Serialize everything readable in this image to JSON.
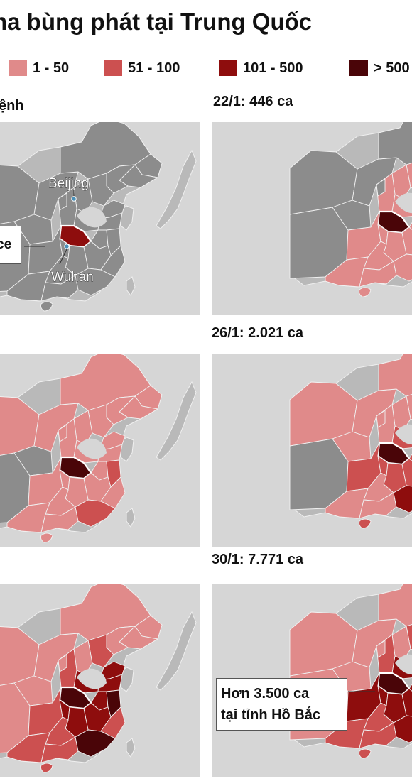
{
  "title": "na bùng phát tại Trung Quốc",
  "legend": [
    {
      "label": "1 - 50",
      "color": "#e08a8a"
    },
    {
      "label": "51 - 100",
      "color": "#cc5050"
    },
    {
      "label": "101 - 500",
      "color": "#8e0d0d"
    },
    {
      "label": "> 500",
      "color": "#4a0508"
    }
  ],
  "colors": {
    "none": "#8c8c8c",
    "land": "#b9b9b9",
    "sea": "#d6d6d6",
    "border": "#f0f0f0"
  },
  "panels": [
    {
      "label": "ệnh",
      "stage": 0
    },
    {
      "label": "22/1: 446 ca",
      "stage": 1
    },
    {
      "label": "",
      "stage": 2
    },
    {
      "label": "26/1: 2.021 ca",
      "stage": 3
    },
    {
      "label": "",
      "stage": 4
    },
    {
      "label": "30/1: 7.771 ca",
      "stage": 5
    }
  ],
  "places": {
    "beijing": "Beijing",
    "wuhan": "Wuhan"
  },
  "callouts": {
    "first": "ce",
    "last_line1": "Hơn 3.500 ca",
    "last_line2": "tại tỉnh Hồ Bắc"
  }
}
